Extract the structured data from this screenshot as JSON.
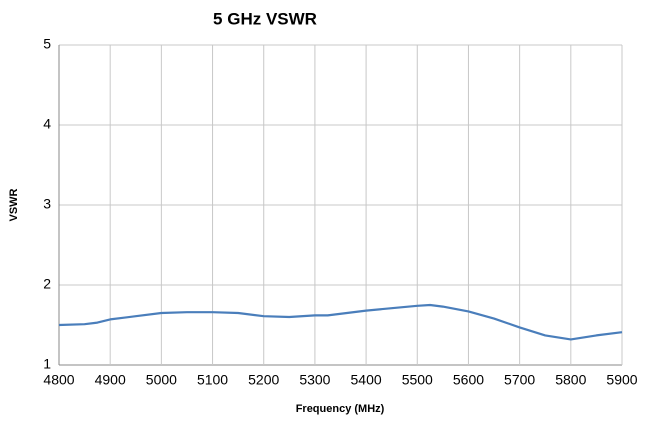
{
  "chart_data": {
    "type": "line",
    "title": "5 GHz VSWR",
    "x_label": "Frequency (MHz)",
    "y_label": "VSWR",
    "x": [
      4800,
      4850,
      4875,
      4900,
      4950,
      5000,
      5050,
      5100,
      5150,
      5200,
      5250,
      5300,
      5325,
      5400,
      5450,
      5500,
      5525,
      5550,
      5600,
      5650,
      5700,
      5750,
      5800,
      5850,
      5900
    ],
    "series": [
      {
        "name": "VSWR",
        "color": "#4a7ebb",
        "values": [
          1.5,
          1.51,
          1.53,
          1.57,
          1.61,
          1.65,
          1.66,
          1.66,
          1.65,
          1.61,
          1.6,
          1.62,
          1.62,
          1.68,
          1.71,
          1.74,
          1.75,
          1.73,
          1.67,
          1.58,
          1.47,
          1.37,
          1.32,
          1.37,
          1.41
        ]
      }
    ],
    "xlim": [
      4800,
      5900
    ],
    "xticks": [
      4800,
      4900,
      5000,
      5100,
      5200,
      5300,
      5400,
      5500,
      5600,
      5700,
      5800,
      5900
    ],
    "ylim": [
      1,
      5
    ],
    "yticks": [
      1,
      2,
      3,
      4,
      5
    ],
    "grid": true
  }
}
